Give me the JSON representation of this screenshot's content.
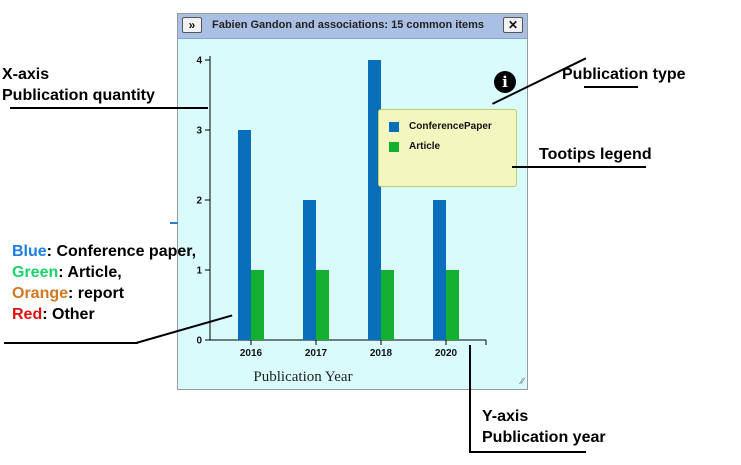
{
  "window": {
    "title": "Fabien Gandon and associations: 15 common items",
    "collapse_icon": "double-chevron-down",
    "close_icon": "close-x",
    "info_icon": "info-circle",
    "background": "#d9fbfb"
  },
  "chart_data": {
    "type": "bar",
    "categories": [
      "2016",
      "2017",
      "2018",
      "2020"
    ],
    "series": [
      {
        "name": "ConferencePaper",
        "color": "#0a6fba",
        "values": [
          3,
          2,
          4,
          2
        ]
      },
      {
        "name": "Article",
        "color": "#12b02e",
        "values": [
          1,
          1,
          1,
          1
        ]
      }
    ],
    "xlabel": "Publication Year",
    "ylabel": "",
    "ylim": [
      0,
      4
    ],
    "yticks": [
      "0",
      "1",
      "2",
      "3",
      "4"
    ],
    "legend": "top-right"
  },
  "annotations": {
    "xaxis_title": "X-axis",
    "xaxis_sub": "Publication quantity",
    "pubtype": "Publication type",
    "tooltips": "Tootips legend",
    "yaxis_title": "Y-axis",
    "yaxis_sub": "Publication year",
    "color_key": [
      {
        "word": "Blue",
        "rest": ": Conference paper,",
        "color": "#1a7fe0"
      },
      {
        "word": "Green",
        "rest": ": Article,",
        "color": "#19d36b"
      },
      {
        "word": "Orange",
        "rest": ": report",
        "color": "#d2781e"
      },
      {
        "word": "Red",
        "rest": ": Other",
        "color": "#e01010"
      }
    ]
  }
}
